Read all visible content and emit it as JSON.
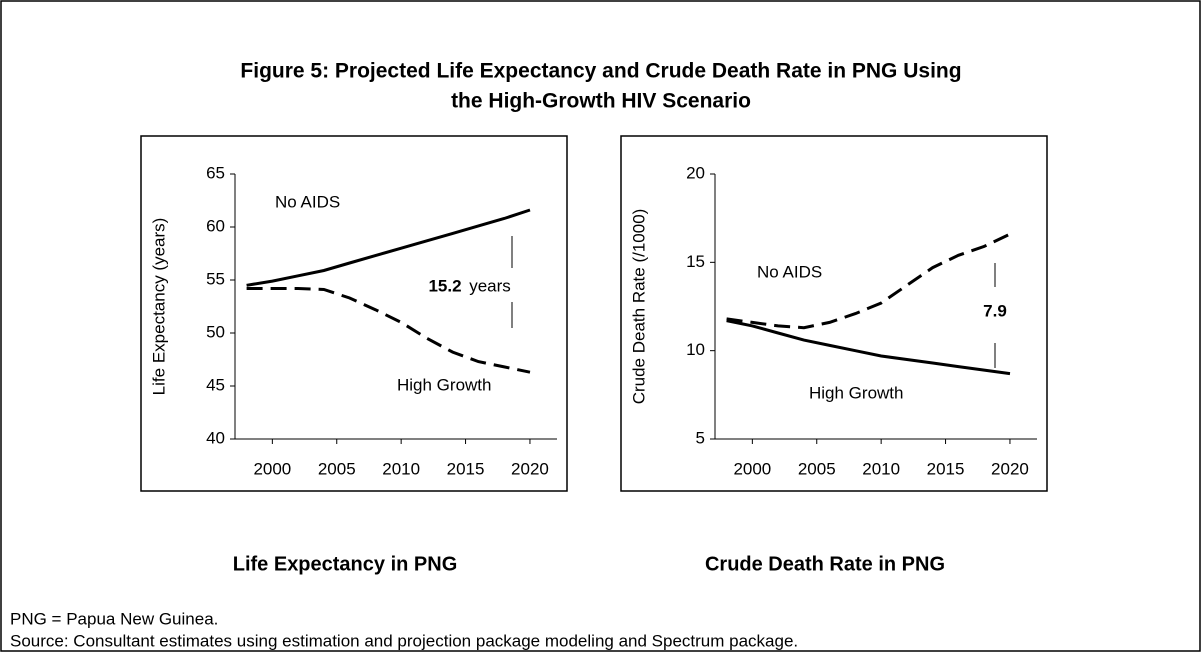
{
  "title": [
    "Figure 5:  Projected Life Expectancy and Crude Death Rate in PNG Using",
    "the High-Growth HIV Scenario"
  ],
  "notes": [
    "PNG = Papua New Guinea.",
    "Source: Consultant estimates using estimation and projection package modeling and Spectrum package."
  ],
  "chart_data": [
    {
      "type": "line",
      "title": "Life Expectancy in PNG",
      "y_label": "Life Expectancy (years)",
      "x": [
        1998,
        2000,
        2002,
        2004,
        2006,
        2008,
        2010,
        2012,
        2014,
        2016,
        2018,
        2020
      ],
      "xlim": [
        1997.1,
        2022.1
      ],
      "xticks": [
        2000,
        2005,
        2010,
        2015,
        2020
      ],
      "ylim": [
        40,
        65
      ],
      "yticks": [
        40,
        45,
        50,
        55,
        60,
        65
      ],
      "series": [
        {
          "name": "No AIDS",
          "color": "#000000",
          "style": "solid",
          "values": [
            54.5,
            54.9,
            55.4,
            55.9,
            56.6,
            57.3,
            58.0,
            58.7,
            59.4,
            60.1,
            60.8,
            61.6
          ]
        },
        {
          "name": "High Growth",
          "color": "#000000",
          "style": "dashed",
          "values": [
            54.2,
            54.2,
            54.2,
            54.1,
            53.3,
            52.2,
            51.0,
            49.5,
            48.2,
            47.3,
            46.8,
            46.3
          ]
        }
      ],
      "annotations": [
        "15.2",
        "years"
      ]
    },
    {
      "type": "line",
      "title": "Crude Death Rate in PNG",
      "y_label": "Crude Death Rate (/1000)",
      "x": [
        1998,
        2000,
        2002,
        2004,
        2006,
        2008,
        2010,
        2012,
        2014,
        2016,
        2018,
        2020
      ],
      "xlim": [
        1997.1,
        2022.1
      ],
      "xticks": [
        2000,
        2005,
        2010,
        2015,
        2020
      ],
      "ylim": [
        5,
        20
      ],
      "yticks": [
        5,
        10,
        15,
        20
      ],
      "series": [
        {
          "name": "No AIDS",
          "color": "#000000",
          "style": "solid",
          "values": [
            11.7,
            11.4,
            11.0,
            10.6,
            10.3,
            10.0,
            9.7,
            9.5,
            9.3,
            9.1,
            8.9,
            8.7
          ]
        },
        {
          "name": "High Growth",
          "color": "#000000",
          "style": "dashed",
          "values": [
            11.8,
            11.6,
            11.4,
            11.3,
            11.6,
            12.1,
            12.7,
            13.7,
            14.7,
            15.4,
            15.9,
            16.6
          ]
        }
      ],
      "annotations": [
        "7.9"
      ]
    }
  ]
}
